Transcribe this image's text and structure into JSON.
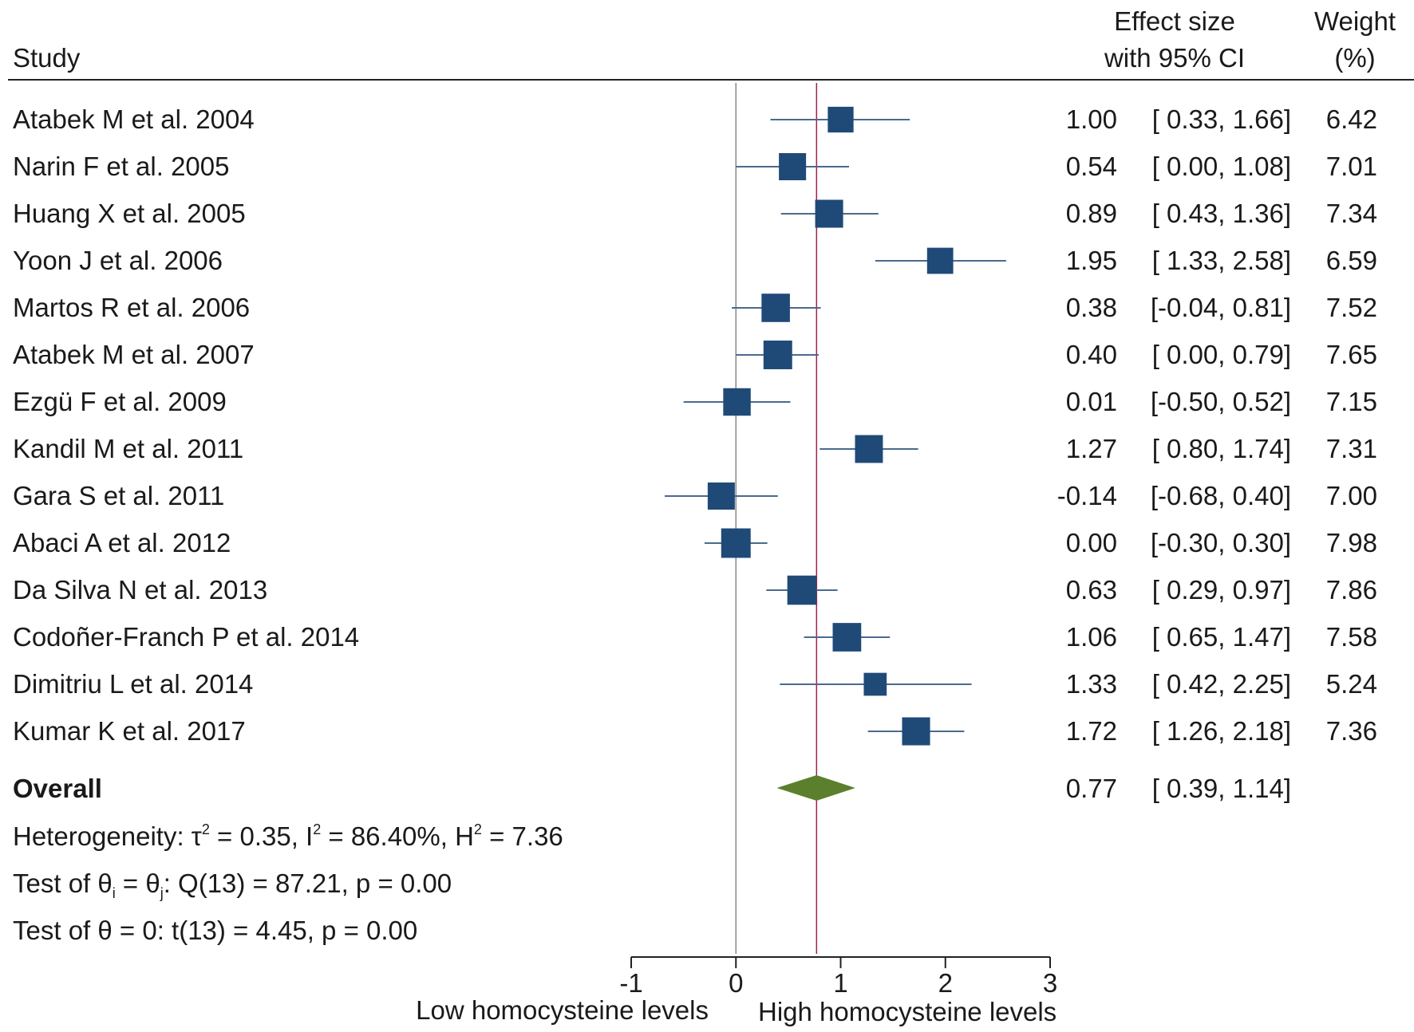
{
  "chart_data": {
    "type": "forest",
    "headers": {
      "study": "Study",
      "effect_line1": "Effect size",
      "effect_line2": "with 95% CI",
      "weight_line1": "Weight",
      "weight_line2": "(%)"
    },
    "studies": [
      {
        "name": "Atabek M et al. 2004",
        "es": 1.0,
        "lo": 0.33,
        "hi": 1.66,
        "es_text": "1.00",
        "ci_text": "[ 0.33, 1.66]",
        "weight": 6.42,
        "weight_text": "6.42"
      },
      {
        "name": "Narin F et al. 2005",
        "es": 0.54,
        "lo": 0.0,
        "hi": 1.08,
        "es_text": "0.54",
        "ci_text": "[ 0.00, 1.08]",
        "weight": 7.01,
        "weight_text": "7.01"
      },
      {
        "name": "Huang X et al. 2005",
        "es": 0.89,
        "lo": 0.43,
        "hi": 1.36,
        "es_text": "0.89",
        "ci_text": "[ 0.43, 1.36]",
        "weight": 7.34,
        "weight_text": "7.34"
      },
      {
        "name": "Yoon J et al. 2006",
        "es": 1.95,
        "lo": 1.33,
        "hi": 2.58,
        "es_text": "1.95",
        "ci_text": "[ 1.33, 2.58]",
        "weight": 6.59,
        "weight_text": "6.59"
      },
      {
        "name": "Martos R et al. 2006",
        "es": 0.38,
        "lo": -0.04,
        "hi": 0.81,
        "es_text": "0.38",
        "ci_text": "[-0.04, 0.81]",
        "weight": 7.52,
        "weight_text": "7.52"
      },
      {
        "name": "Atabek M et al. 2007",
        "es": 0.4,
        "lo": 0.0,
        "hi": 0.79,
        "es_text": "0.40",
        "ci_text": "[ 0.00, 0.79]",
        "weight": 7.65,
        "weight_text": "7.65"
      },
      {
        "name": "Ezgü F et al. 2009",
        "es": 0.01,
        "lo": -0.5,
        "hi": 0.52,
        "es_text": "0.01",
        "ci_text": "[-0.50, 0.52]",
        "weight": 7.15,
        "weight_text": "7.15"
      },
      {
        "name": "Kandil M et al. 2011",
        "es": 1.27,
        "lo": 0.8,
        "hi": 1.74,
        "es_text": "1.27",
        "ci_text": "[ 0.80, 1.74]",
        "weight": 7.31,
        "weight_text": "7.31"
      },
      {
        "name": "Gara S et al. 2011",
        "es": -0.14,
        "lo": -0.68,
        "hi": 0.4,
        "es_text": "-0.14",
        "ci_text": "[-0.68, 0.40]",
        "weight": 7.0,
        "weight_text": "7.00"
      },
      {
        "name": "Abaci A et al. 2012",
        "es": 0.0,
        "lo": -0.3,
        "hi": 0.3,
        "es_text": "0.00",
        "ci_text": "[-0.30, 0.30]",
        "weight": 7.98,
        "weight_text": "7.98"
      },
      {
        "name": "Da Silva N et al. 2013",
        "es": 0.63,
        "lo": 0.29,
        "hi": 0.97,
        "es_text": "0.63",
        "ci_text": "[ 0.29, 0.97]",
        "weight": 7.86,
        "weight_text": "7.86"
      },
      {
        "name": "Codoñer-Franch P et al. 2014",
        "es": 1.06,
        "lo": 0.65,
        "hi": 1.47,
        "es_text": "1.06",
        "ci_text": "[ 0.65, 1.47]",
        "weight": 7.58,
        "weight_text": "7.58"
      },
      {
        "name": "Dimitriu L et al. 2014",
        "es": 1.33,
        "lo": 0.42,
        "hi": 2.25,
        "es_text": "1.33",
        "ci_text": "[ 0.42, 2.25]",
        "weight": 5.24,
        "weight_text": "5.24"
      },
      {
        "name": "Kumar K et al. 2017",
        "es": 1.72,
        "lo": 1.26,
        "hi": 2.18,
        "es_text": "1.72",
        "ci_text": "[ 1.26, 2.18]",
        "weight": 7.36,
        "weight_text": "7.36"
      }
    ],
    "overall": {
      "label": "Overall",
      "es": 0.77,
      "lo": 0.39,
      "hi": 1.14,
      "es_text": "0.77",
      "ci_text": "[ 0.39, 1.14]"
    },
    "stats": {
      "heterogeneity_prefix": "Heterogeneity: τ",
      "tau2_text": " = 0.35, I",
      "i2_text": " = 86.40%, H",
      "h2_text": " = 7.36",
      "test1_prefix": "Test of θ",
      "test1_sub_i": "i",
      "test1_mid": " = θ",
      "test1_sub_j": "j",
      "test1_rest": ": Q(13) = 87.21, p = 0.00",
      "test2": "Test of θ = 0: t(13) = 4.45, p = 0.00",
      "superscript": "2"
    },
    "xaxis": {
      "range": [
        -1,
        3
      ],
      "ticks": [
        -1,
        0,
        1,
        2,
        3
      ],
      "tick_labels": [
        "-1",
        "0",
        "1",
        "2",
        "3"
      ],
      "label_left": "Low homocysteine levels",
      "label_right": "High homocysteine levels"
    },
    "colors": {
      "marker": "#1f4a78",
      "ci_line": "#4a6a8e",
      "overall_diamond": "#5b7f2c",
      "overall_line": "#a02050",
      "null_line": "#8a8a8a",
      "text": "#1a1a1a"
    }
  }
}
